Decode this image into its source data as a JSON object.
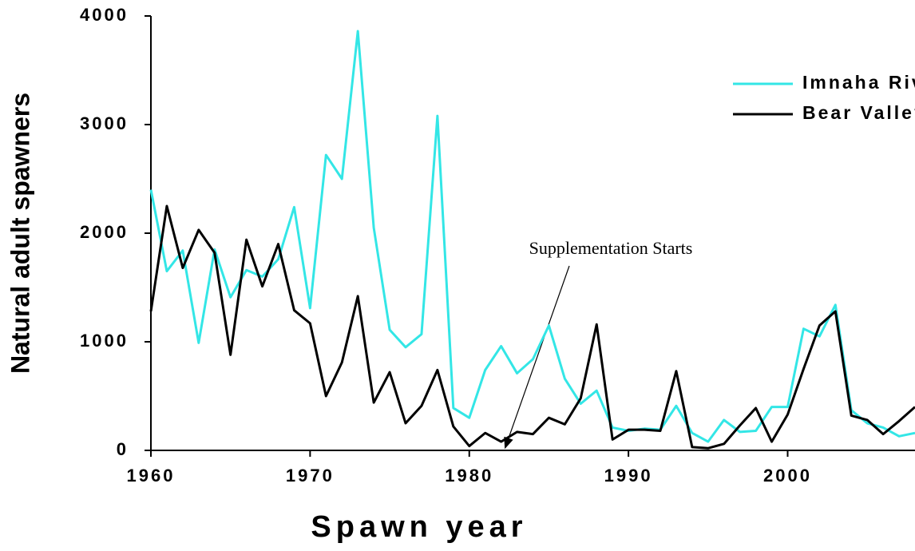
{
  "chart_data": {
    "type": "line",
    "xlabel": "Spawn year",
    "ylabel": "Natural adult spawners",
    "annotation": "Supplementation Starts",
    "x": [
      1960,
      1961,
      1962,
      1963,
      1964,
      1965,
      1966,
      1967,
      1968,
      1969,
      1970,
      1971,
      1972,
      1973,
      1974,
      1975,
      1976,
      1977,
      1978,
      1979,
      1980,
      1981,
      1982,
      1983,
      1984,
      1985,
      1986,
      1987,
      1988,
      1989,
      1990,
      1991,
      1992,
      1993,
      1994,
      1995,
      1996,
      1997,
      1998,
      1999,
      2000,
      2001,
      2002,
      2003,
      2004,
      2005,
      2006,
      2007,
      2008
    ],
    "series": [
      {
        "name": "Imnaha River",
        "color": "#33e6e6",
        "values": [
          2400,
          1650,
          1840,
          990,
          1850,
          1410,
          1660,
          1600,
          1760,
          2240,
          1310,
          2720,
          2500,
          3860,
          2050,
          1110,
          950,
          1070,
          3080,
          390,
          300,
          740,
          960,
          710,
          840,
          1150,
          660,
          430,
          550,
          210,
          180,
          200,
          190,
          410,
          160,
          80,
          280,
          170,
          180,
          400,
          400,
          1120,
          1050,
          1340,
          370,
          250,
          210,
          130,
          160
        ]
      },
      {
        "name": "Bear Valley Creek",
        "color": "#000000",
        "values": [
          1280,
          2250,
          1680,
          2030,
          1820,
          880,
          1940,
          1510,
          1900,
          1290,
          1170,
          500,
          810,
          1420,
          440,
          720,
          250,
          410,
          740,
          220,
          40,
          160,
          80,
          170,
          150,
          300,
          240,
          480,
          1160,
          100,
          190,
          190,
          180,
          730,
          30,
          20,
          60,
          230,
          390,
          80,
          330,
          750,
          1150,
          1280,
          320,
          280,
          150,
          270,
          400
        ]
      }
    ],
    "xlim": [
      1960,
      2008
    ],
    "xticks": [
      1960,
      1970,
      1980,
      1990,
      2000
    ],
    "ylim": [
      0,
      4000
    ],
    "yticks": [
      0,
      1000,
      2000,
      3000,
      4000
    ],
    "grid": false
  }
}
